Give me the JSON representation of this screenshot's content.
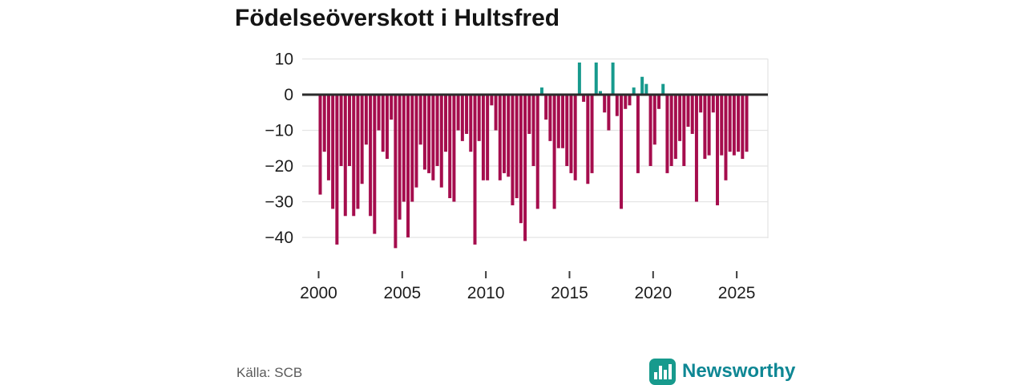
{
  "title": "Födelseöverskott i Hultsfred",
  "source": "Källa: SCB",
  "brand": {
    "name": "Newsworthy"
  },
  "chart_data": {
    "type": "bar",
    "title": "Födelseöverskott i Hultsfred",
    "xlabel": "",
    "ylabel": "",
    "frequency": "quarterly",
    "x_start": "2000-Q1",
    "x_end": "2025-Q3",
    "x_tick_labels": [
      "2000",
      "2005",
      "2010",
      "2015",
      "2020",
      "2025"
    ],
    "y_ticks": [
      10,
      0,
      -10,
      -20,
      -30,
      -40
    ],
    "y_tick_labels": [
      "10",
      "0",
      "−10",
      "−20",
      "−30",
      "−40"
    ],
    "ylim": [
      -46,
      13
    ],
    "grid": "horizontal",
    "legend": "none",
    "colors": {
      "negative": "#a50d4d",
      "positive": "#179a8d",
      "zero_line": "#2b2b2b",
      "grid": "#e4e4e4"
    },
    "series": [
      {
        "name": "Födelseöverskott",
        "values": [
          -28,
          -16,
          -24,
          -32,
          -42,
          -20,
          -34,
          -20,
          -34,
          -32,
          -25,
          -14,
          -34,
          -39,
          -10,
          -16,
          -18,
          -7,
          -43,
          -35,
          -30,
          -40,
          -30,
          -26,
          -14,
          -21,
          -22,
          -24,
          -20,
          -26,
          -16,
          -29,
          -30,
          -10,
          -13,
          -11,
          -16,
          -42,
          -13,
          -24,
          -24,
          -3,
          -10,
          -24,
          -22,
          -23,
          -31,
          -29,
          -36,
          -41,
          -11,
          -20,
          -32,
          2,
          -7,
          -13,
          -32,
          -15,
          -15,
          -20,
          -22,
          -24,
          9,
          -2,
          -25,
          -22,
          9,
          1,
          -5,
          -10,
          9,
          -6,
          -32,
          -4,
          -3,
          2,
          -22,
          5,
          3,
          -20,
          -14,
          -4,
          3,
          -22,
          -20,
          -18,
          -13,
          -20,
          -9,
          -11,
          -30,
          -5,
          -18,
          -17,
          -5,
          -31,
          -17,
          -24,
          -16,
          -17,
          -16,
          -18,
          -16
        ]
      }
    ]
  }
}
